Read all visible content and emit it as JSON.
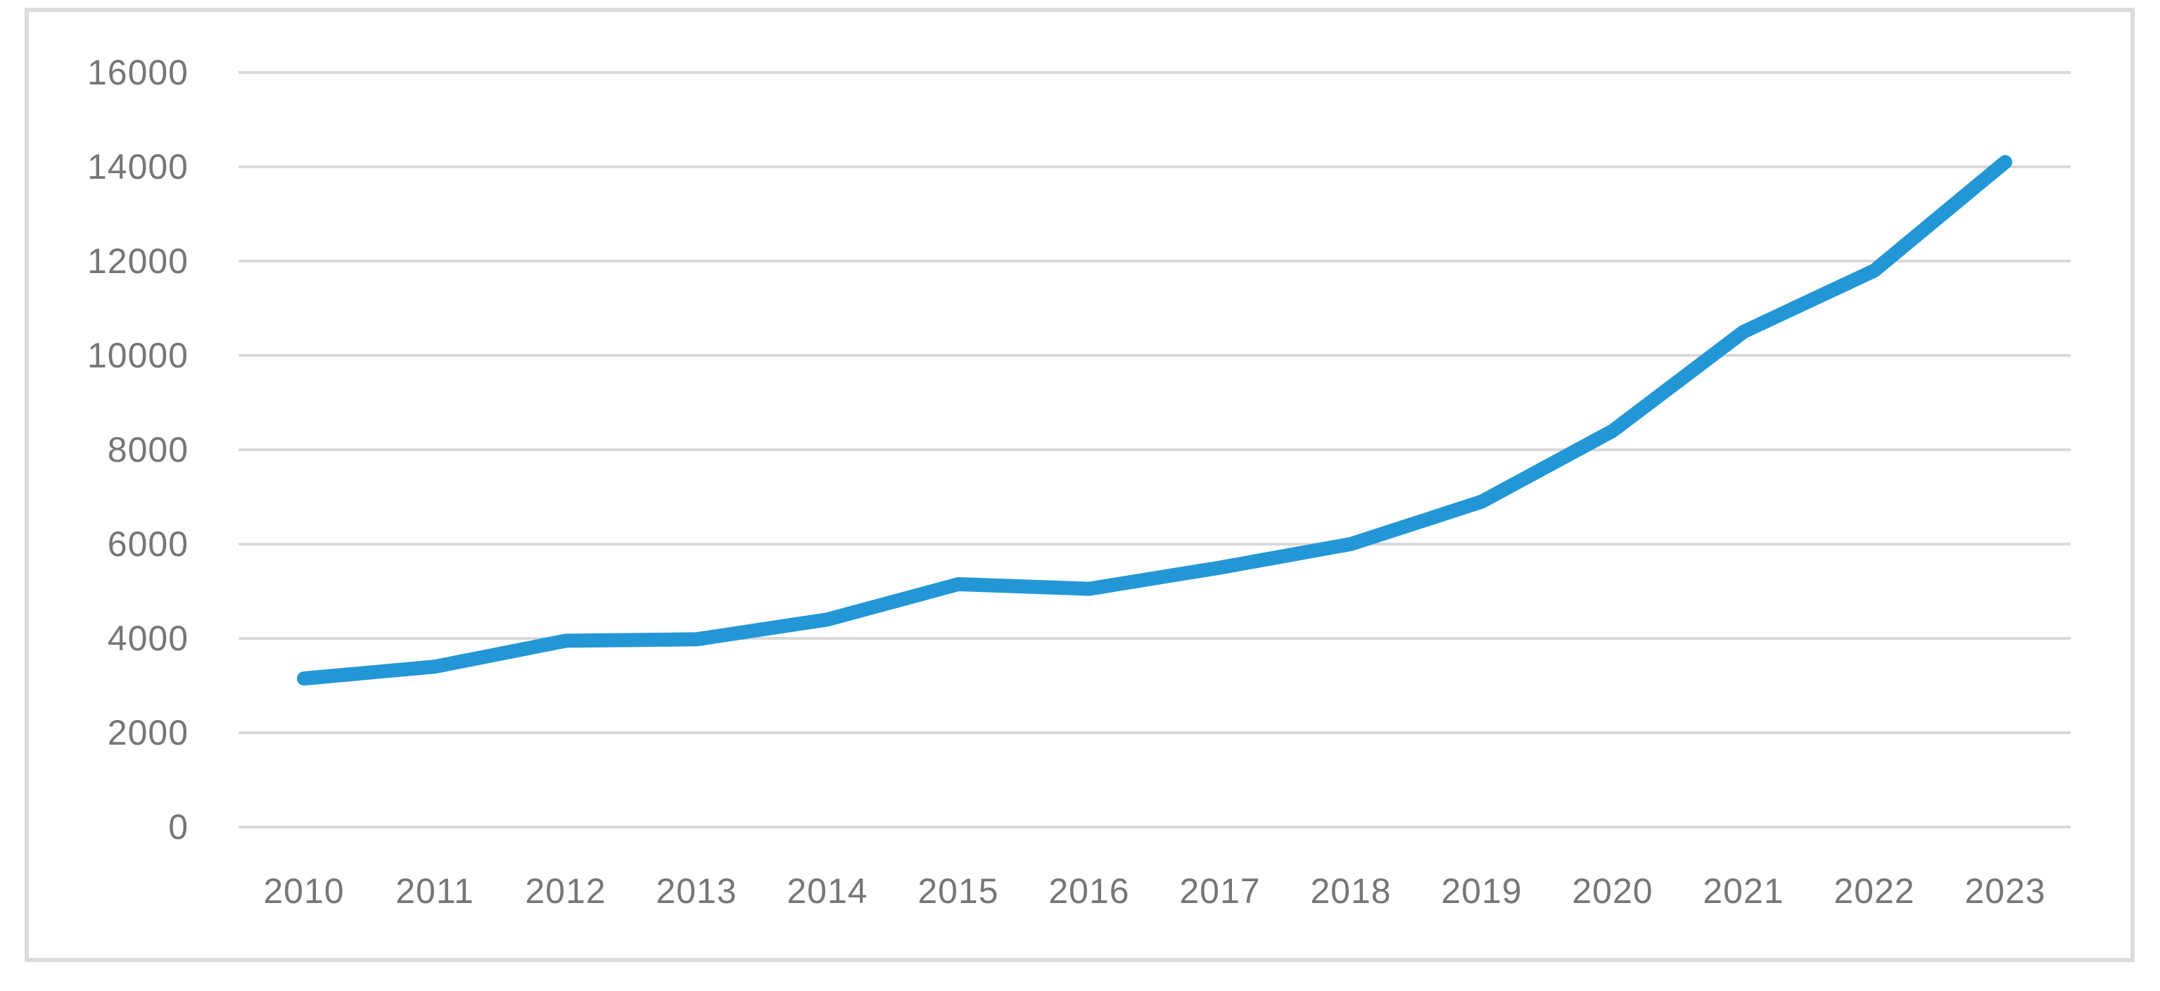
{
  "chart_data": {
    "type": "line",
    "title": "",
    "categories": [
      "2010",
      "2011",
      "2012",
      "2013",
      "2014",
      "2015",
      "2016",
      "2017",
      "2018",
      "2019",
      "2020",
      "2021",
      "2022",
      "2023"
    ],
    "series": [
      {
        "values": [
          3150,
          3400,
          3950,
          3980,
          4400,
          5150,
          5050,
          5500,
          6000,
          6900,
          8400,
          10500,
          11800,
          14100
        ],
        "color": "#2397d5"
      }
    ],
    "xlabel": "",
    "ylabel": "",
    "ylim": [
      0,
      16000
    ],
    "ytick_interval": 2000,
    "ytick_labels": [
      "0",
      "2000",
      "4000",
      "6000",
      "8000",
      "10000",
      "12000",
      "14000",
      "16000"
    ],
    "grid": "horizontal",
    "legend_position": "none",
    "colors": {
      "line": "#2397d5",
      "gridline": "#d9d9d9",
      "tick_label": "#767676",
      "chart_border": "#dcdcdc",
      "background": "#ffffff"
    }
  }
}
